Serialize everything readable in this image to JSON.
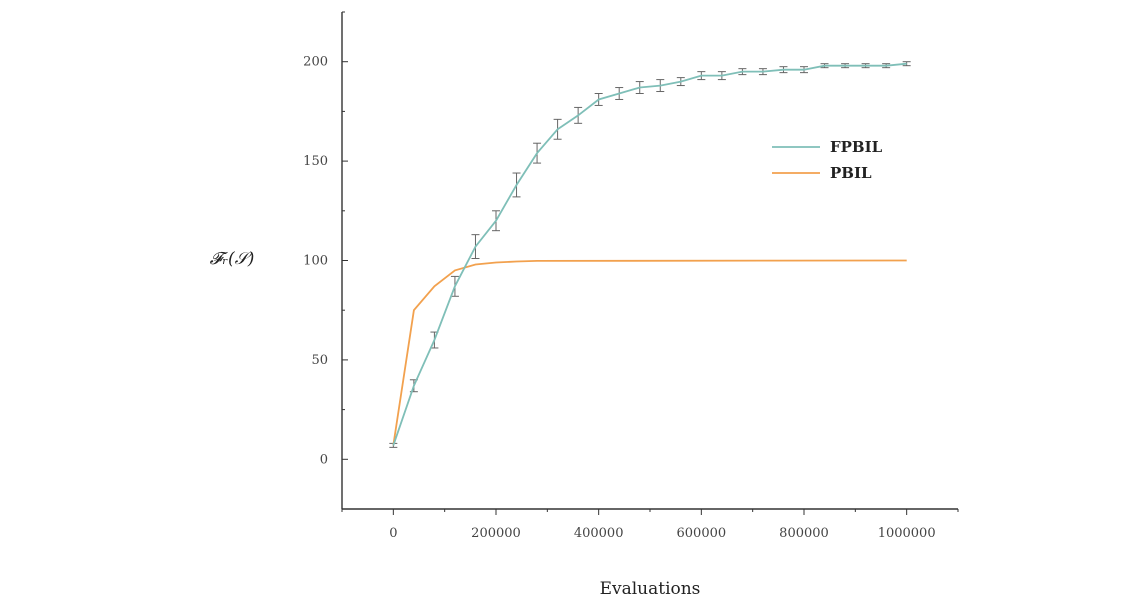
{
  "chart_data": {
    "type": "line",
    "title": "",
    "xlabel": "Evaluations",
    "ylabel": "𝓕ᵣ(𝒮)",
    "xlim": [
      -100000,
      1100000
    ],
    "ylim": [
      -25,
      225
    ],
    "xticks": [
      0,
      200000,
      400000,
      600000,
      800000,
      1000000
    ],
    "xtick_labels": [
      "0",
      "200000",
      "400000",
      "600000",
      "800000",
      "1000000"
    ],
    "yticks": [
      0,
      50,
      100,
      150,
      200
    ],
    "ytick_labels": [
      "0",
      "50",
      "100",
      "150",
      "200"
    ],
    "grid": false,
    "legend_position": "right",
    "series": [
      {
        "name": "FPBIL",
        "color": "#7fbfb8",
        "x": [
          0,
          40000,
          80000,
          120000,
          160000,
          200000,
          240000,
          280000,
          320000,
          360000,
          400000,
          440000,
          480000,
          520000,
          560000,
          600000,
          640000,
          680000,
          720000,
          760000,
          800000,
          840000,
          880000,
          920000,
          960000,
          1000000
        ],
        "y": [
          7,
          37,
          60,
          87,
          107,
          120,
          138,
          154,
          166,
          173,
          181,
          184,
          187,
          188,
          190,
          193,
          193,
          195,
          195,
          196,
          196,
          198,
          198,
          198,
          198,
          199
        ],
        "err": [
          1,
          3,
          4,
          5,
          6,
          5,
          6,
          5,
          5,
          4,
          3,
          3,
          3,
          3,
          2,
          2,
          2,
          1.5,
          1.5,
          1.5,
          1.5,
          1,
          1,
          1,
          1,
          1
        ]
      },
      {
        "name": "PBIL",
        "color": "#f2a14e",
        "x": [
          0,
          40000,
          80000,
          120000,
          160000,
          200000,
          240000,
          280000,
          1000000
        ],
        "y": [
          7,
          75,
          87,
          95,
          98,
          99,
          99.5,
          99.8,
          100
        ]
      }
    ]
  }
}
